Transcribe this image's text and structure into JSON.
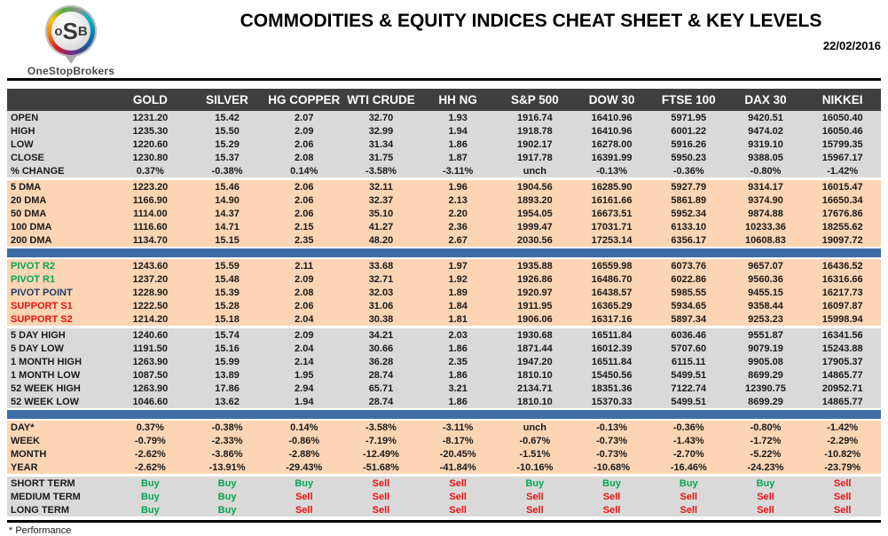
{
  "header": {
    "logo": {
      "o": "o",
      "s": "S",
      "b": "B",
      "brand": "OneStopBrokers"
    },
    "title": "COMMODITIES & EQUITY INDICES CHEAT SHEET & KEY LEVELS",
    "date": "22/02/2016"
  },
  "colors": {
    "header_dark": "#3f3f3f",
    "section_gray": "#d9d9d9",
    "section_peach": "#fcd5b4",
    "accent_blue": "#3e6ca6",
    "buy_green": "#00a651",
    "sell_red": "#ee1111",
    "pivot_green": "#00a651",
    "pivot_navy": "#1f3a68",
    "support_red": "#ee1111"
  },
  "table": {
    "columns": [
      "GOLD",
      "SILVER",
      "HG COPPER",
      "WTI CRUDE",
      "HH NG",
      "S&P 500",
      "DOW 30",
      "FTSE 100",
      "DAX 30",
      "NIKKEI"
    ],
    "sections": [
      {
        "id": "ohlc",
        "bg": "gray",
        "before": "none",
        "rows": [
          {
            "label": "OPEN",
            "values": [
              "1231.20",
              "15.42",
              "2.07",
              "32.70",
              "1.93",
              "1916.74",
              "16410.96",
              "5971.95",
              "9420.51",
              "16050.40"
            ]
          },
          {
            "label": "HIGH",
            "values": [
              "1235.30",
              "15.50",
              "2.09",
              "32.99",
              "1.94",
              "1918.78",
              "16410.96",
              "6001.22",
              "9474.02",
              "16050.46"
            ]
          },
          {
            "label": "LOW",
            "values": [
              "1220.60",
              "15.29",
              "2.06",
              "31.34",
              "1.86",
              "1902.17",
              "16278.00",
              "5916.26",
              "9319.10",
              "15799.35"
            ]
          },
          {
            "label": "CLOSE",
            "values": [
              "1230.80",
              "15.37",
              "2.08",
              "31.75",
              "1.87",
              "1917.78",
              "16391.99",
              "5950.23",
              "9388.05",
              "15967.17"
            ]
          },
          {
            "label": "% CHANGE",
            "values": [
              "0.37%",
              "-0.38%",
              "0.14%",
              "-3.58%",
              "-3.11%",
              "unch",
              "-0.13%",
              "-0.36%",
              "-0.80%",
              "-1.42%"
            ]
          }
        ]
      },
      {
        "id": "dma",
        "bg": "peach",
        "before": "gap",
        "rows": [
          {
            "label": "5 DMA",
            "values": [
              "1223.20",
              "15.46",
              "2.06",
              "32.11",
              "1.96",
              "1904.56",
              "16285.90",
              "5927.79",
              "9314.17",
              "16015.47"
            ]
          },
          {
            "label": "20 DMA",
            "values": [
              "1166.90",
              "14.90",
              "2.06",
              "32.37",
              "2.13",
              "1893.20",
              "16161.66",
              "5861.89",
              "9374.90",
              "16650.34"
            ]
          },
          {
            "label": "50 DMA",
            "values": [
              "1114.00",
              "14.37",
              "2.06",
              "35.10",
              "2.20",
              "1954.05",
              "16673.51",
              "5952.34",
              "9874.88",
              "17676.86"
            ]
          },
          {
            "label": "100 DMA",
            "values": [
              "1116.60",
              "14.71",
              "2.15",
              "41.27",
              "2.36",
              "1999.47",
              "17031.71",
              "6133.10",
              "10233.36",
              "18255.62"
            ]
          },
          {
            "label": "200 DMA",
            "values": [
              "1134.70",
              "15.15",
              "2.35",
              "48.20",
              "2.67",
              "2030.56",
              "17253.14",
              "6356.17",
              "10608.83",
              "19097.72"
            ]
          }
        ]
      },
      {
        "id": "pivots",
        "bg": "peach",
        "before": "divider",
        "rows": [
          {
            "label": "PIVOT R2",
            "label_color": "pivot_green",
            "values": [
              "1243.60",
              "15.59",
              "2.11",
              "33.68",
              "1.97",
              "1935.88",
              "16559.98",
              "6073.76",
              "9657.07",
              "16436.52"
            ]
          },
          {
            "label": "PIVOT R1",
            "label_color": "pivot_green",
            "values": [
              "1237.20",
              "15.48",
              "2.09",
              "32.71",
              "1.92",
              "1926.86",
              "16486.70",
              "6022.86",
              "9560.36",
              "16316.66"
            ]
          },
          {
            "label": "PIVOT POINT",
            "label_color": "pivot_navy",
            "values": [
              "1228.90",
              "15.39",
              "2.08",
              "32.03",
              "1.89",
              "1920.97",
              "16438.57",
              "5985.55",
              "9455.15",
              "16217.73"
            ]
          },
          {
            "label": "SUPPORT S1",
            "label_color": "support_red",
            "values": [
              "1222.50",
              "15.28",
              "2.06",
              "31.06",
              "1.84",
              "1911.95",
              "16365.29",
              "5934.65",
              "9358.44",
              "16097.87"
            ]
          },
          {
            "label": "SUPPORT S2",
            "label_color": "support_red",
            "values": [
              "1214.20",
              "15.18",
              "2.04",
              "30.38",
              "1.81",
              "1906.06",
              "16317.16",
              "5897.34",
              "9253.23",
              "15998.94"
            ]
          }
        ]
      },
      {
        "id": "ranges",
        "bg": "gray",
        "before": "gap",
        "rows": [
          {
            "label": "5 DAY HIGH",
            "values": [
              "1240.60",
              "15.74",
              "2.09",
              "34.21",
              "2.03",
              "1930.68",
              "16511.84",
              "6036.46",
              "9551.87",
              "16341.56"
            ]
          },
          {
            "label": "5 DAY LOW",
            "values": [
              "1191.50",
              "15.16",
              "2.04",
              "30.66",
              "1.86",
              "1871.44",
              "16012.39",
              "5707.60",
              "9079.19",
              "15243.88"
            ]
          },
          {
            "label": "1 MONTH HIGH",
            "values": [
              "1263.90",
              "15.99",
              "2.14",
              "36.28",
              "2.35",
              "1947.20",
              "16511.84",
              "6115.11",
              "9905.08",
              "17905.37"
            ]
          },
          {
            "label": "1 MONTH LOW",
            "values": [
              "1087.50",
              "13.89",
              "1.95",
              "28.74",
              "1.86",
              "1810.10",
              "15450.56",
              "5499.51",
              "8699.29",
              "14865.77"
            ]
          },
          {
            "label": "52 WEEK HIGH",
            "values": [
              "1263.90",
              "17.86",
              "2.94",
              "65.71",
              "3.21",
              "2134.71",
              "18351.36",
              "7122.74",
              "12390.75",
              "20952.71"
            ]
          },
          {
            "label": "52 WEEK LOW",
            "values": [
              "1046.60",
              "13.62",
              "1.94",
              "28.74",
              "1.86",
              "1810.10",
              "15370.33",
              "5499.51",
              "8699.29",
              "14865.77"
            ]
          }
        ]
      },
      {
        "id": "performance",
        "bg": "peach",
        "before": "divider",
        "rows": [
          {
            "label": "DAY*",
            "values": [
              "0.37%",
              "-0.38%",
              "0.14%",
              "-3.58%",
              "-3.11%",
              "unch",
              "-0.13%",
              "-0.36%",
              "-0.80%",
              "-1.42%"
            ]
          },
          {
            "label": "WEEK",
            "values": [
              "-0.79%",
              "-2.33%",
              "-0.86%",
              "-7.19%",
              "-8.17%",
              "-0.67%",
              "-0.73%",
              "-1.43%",
              "-1.72%",
              "-2.29%"
            ]
          },
          {
            "label": "MONTH",
            "values": [
              "-2.62%",
              "-3.86%",
              "-2.88%",
              "-12.49%",
              "-20.45%",
              "-1.51%",
              "-0.73%",
              "-2.70%",
              "-5.22%",
              "-10.82%"
            ]
          },
          {
            "label": "YEAR",
            "values": [
              "-2.62%",
              "-13.91%",
              "-29.43%",
              "-51.68%",
              "-41.84%",
              "-10.16%",
              "-10.68%",
              "-16.46%",
              "-24.23%",
              "-23.79%"
            ]
          }
        ]
      },
      {
        "id": "signals",
        "bg": "gray",
        "before": "gap",
        "signal_cells": true,
        "rows": [
          {
            "label": "SHORT TERM",
            "values": [
              "Buy",
              "Buy",
              "Buy",
              "Sell",
              "Sell",
              "Buy",
              "Buy",
              "Buy",
              "Buy",
              "Sell"
            ]
          },
          {
            "label": "MEDIUM TERM",
            "values": [
              "Buy",
              "Buy",
              "Sell",
              "Sell",
              "Sell",
              "Sell",
              "Sell",
              "Sell",
              "Sell",
              "Sell"
            ]
          },
          {
            "label": "LONG TERM",
            "values": [
              "Buy",
              "Buy",
              "Sell",
              "Sell",
              "Sell",
              "Sell",
              "Sell",
              "Sell",
              "Sell",
              "Sell"
            ]
          }
        ]
      }
    ]
  },
  "footer": {
    "note": "* Performance"
  }
}
